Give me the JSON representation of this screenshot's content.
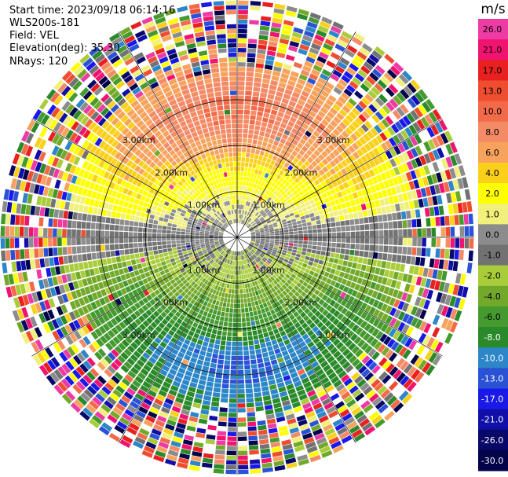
{
  "header": {
    "start_time": "Start time: 2023/09/18 06:14:16",
    "site": "WLS200s-181",
    "field": "Field: VEL",
    "elevation": "Elevation(deg): 35.30",
    "nrays": "NRays: 120"
  },
  "colorbar": {
    "unit": "m/s",
    "levels": [
      {
        "label": "26.0",
        "color": "#ee3aa4"
      },
      {
        "label": "21.0",
        "color": "#f0136f"
      },
      {
        "label": "17.0",
        "color": "#e82020"
      },
      {
        "label": "13.0",
        "color": "#ef4d30"
      },
      {
        "label": "10.0",
        "color": "#f26a48"
      },
      {
        "label": "8.0",
        "color": "#f48a66"
      },
      {
        "label": "6.0",
        "color": "#f7a35d"
      },
      {
        "label": "4.0",
        "color": "#fbd01a"
      },
      {
        "label": "2.0",
        "color": "#ffff00"
      },
      {
        "label": "1.0",
        "color": "#f0f07a"
      },
      {
        "label": "0.0",
        "color": "#8c8c8c"
      },
      {
        "label": "-1.0",
        "color": "#727272"
      },
      {
        "label": "-2.0",
        "color": "#a9cd3a"
      },
      {
        "label": "-4.0",
        "color": "#73a92b"
      },
      {
        "label": "-6.0",
        "color": "#459a2f"
      },
      {
        "label": "-8.0",
        "color": "#2a8a2a"
      },
      {
        "label": "-10.0",
        "color": "#2c86c8"
      },
      {
        "label": "-13.0",
        "color": "#2a52d4"
      },
      {
        "label": "-17.0",
        "color": "#1a1ae8"
      },
      {
        "label": "-21.0",
        "color": "#1010a8"
      },
      {
        "label": "-26.0",
        "color": "#080868"
      },
      {
        "label": "-30.0",
        "color": "#03034a"
      }
    ]
  },
  "chart_data": {
    "type": "ppi",
    "field": "VEL",
    "unit": "m/s",
    "n_rays": 120,
    "range_rings": [
      "1.00km",
      "2.00km",
      "3.00km"
    ],
    "max_range_km": 3.0,
    "spokes_deg": [
      0,
      30,
      60,
      90,
      120,
      150,
      180,
      210,
      240,
      270,
      300,
      330
    ],
    "velocity_profile": {
      "range_km": [
        0.3,
        0.6,
        0.9,
        1.2,
        1.5,
        1.8,
        2.1
      ],
      "north_ms": [
        1.0,
        2.0,
        4.0,
        8.0,
        10.0,
        10.0,
        8.0
      ],
      "south_ms": [
        -1.0,
        -2.0,
        -4.0,
        -6.0,
        -10.0,
        -10.0,
        -8.0
      ]
    },
    "noise_beyond_km": 2.1
  }
}
